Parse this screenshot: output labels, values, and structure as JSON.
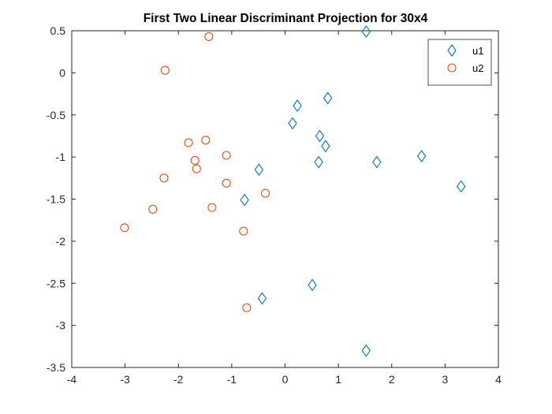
{
  "chart_data": {
    "type": "scatter",
    "title": "First Two Linear Discriminant Projection for 30x4",
    "xlabel": "",
    "ylabel": "",
    "xlim": [
      -4,
      4
    ],
    "ylim": [
      -3.5,
      0.5
    ],
    "xticks": [
      -4,
      -3,
      -2,
      -1,
      0,
      1,
      2,
      3,
      4
    ],
    "yticks": [
      -3.5,
      -3,
      -2.5,
      -2,
      -1.5,
      -1,
      -0.5,
      0,
      0.5
    ],
    "grid": false,
    "legend_position": "top-right",
    "series": [
      {
        "name": "u1",
        "marker": "diamond",
        "color": "#0072BD",
        "points": [
          [
            1.52,
            0.49
          ],
          [
            0.8,
            -0.3
          ],
          [
            0.23,
            -0.39
          ],
          [
            0.14,
            -0.6
          ],
          [
            0.65,
            -0.75
          ],
          [
            0.76,
            -0.87
          ],
          [
            2.56,
            -0.99
          ],
          [
            0.63,
            -1.06
          ],
          [
            1.72,
            -1.06
          ],
          [
            -0.49,
            -1.15
          ],
          [
            3.3,
            -1.35
          ],
          [
            -0.76,
            -1.51
          ],
          [
            0.51,
            -2.52
          ],
          [
            -0.43,
            -2.68
          ],
          [
            1.52,
            -3.3
          ]
        ]
      },
      {
        "name": "u2",
        "marker": "circle",
        "color": "#D95319",
        "points": [
          [
            -1.43,
            0.43
          ],
          [
            -2.25,
            0.03
          ],
          [
            -1.81,
            -0.83
          ],
          [
            -1.49,
            -0.8
          ],
          [
            -1.1,
            -0.98
          ],
          [
            -1.69,
            -1.04
          ],
          [
            -1.66,
            -1.14
          ],
          [
            -2.27,
            -1.25
          ],
          [
            -1.1,
            -1.31
          ],
          [
            -0.37,
            -1.43
          ],
          [
            -2.48,
            -1.62
          ],
          [
            -1.37,
            -1.6
          ],
          [
            -3.01,
            -1.84
          ],
          [
            -0.78,
            -1.88
          ],
          [
            -0.72,
            -2.79
          ]
        ]
      }
    ]
  }
}
